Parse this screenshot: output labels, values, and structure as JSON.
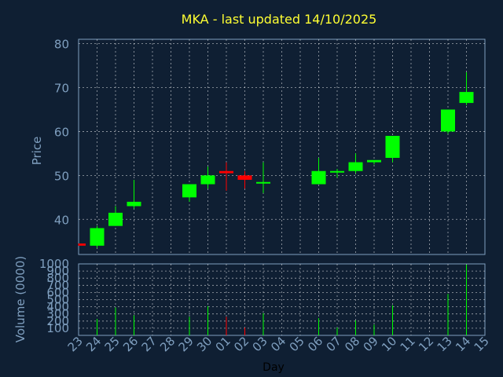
{
  "chart_data": {
    "type": "candlestick",
    "title": "MKA - last updated 14/10/2025",
    "xlabel": "Day",
    "price_panel": {
      "ylabel": "Price",
      "ylim": [
        32,
        81
      ],
      "yticks": [
        40,
        50,
        60,
        70,
        80
      ],
      "grid": true
    },
    "volume_panel": {
      "ylabel": "Volume (0000)",
      "ylim": [
        0,
        1000
      ],
      "yticks": [
        100,
        200,
        300,
        400,
        500,
        600,
        700,
        800,
        900,
        1000
      ],
      "grid": true
    },
    "x_tick_labels": [
      "23",
      "24",
      "25",
      "26",
      "27",
      "28",
      "29",
      "30",
      "01",
      "02",
      "03",
      "04",
      "05",
      "06",
      "07",
      "08",
      "09",
      "10",
      "11",
      "12",
      "13",
      "14",
      "15"
    ],
    "colors": {
      "up": "#00ff00",
      "down": "#ff0000",
      "grid": "#ffffff",
      "axis": "#7f9fbf",
      "title": "#ffff33"
    },
    "candles": [
      {
        "day": "23",
        "open": 34.5,
        "high": 34.5,
        "low": 34.0,
        "close": 34.0,
        "volume": 0
      },
      {
        "day": "24",
        "open": 34.0,
        "high": 38.5,
        "low": 33.5,
        "close": 38.0,
        "volume": 230
      },
      {
        "day": "25",
        "open": 38.5,
        "high": 43.0,
        "low": 38.5,
        "close": 41.5,
        "volume": 390
      },
      {
        "day": "26",
        "open": 43.0,
        "high": 49.0,
        "low": 42.5,
        "close": 44.0,
        "volume": 280
      },
      {
        "day": "29",
        "open": 45.0,
        "high": 48.0,
        "low": 44.0,
        "close": 48.0,
        "volume": 260
      },
      {
        "day": "30",
        "open": 48.0,
        "high": 52.0,
        "low": 47.0,
        "close": 50.0,
        "volume": 410
      },
      {
        "day": "01",
        "open": 51.0,
        "high": 53.0,
        "low": 46.5,
        "close": 50.5,
        "volume": 260
      },
      {
        "day": "02",
        "open": 50.0,
        "high": 51.0,
        "low": 47.0,
        "close": 49.0,
        "volume": 110
      },
      {
        "day": "03",
        "open": 48.5,
        "high": 53.0,
        "low": 46.0,
        "close": 48.5,
        "volume": 310
      },
      {
        "day": "06",
        "open": 48.0,
        "high": 54.0,
        "low": 48.0,
        "close": 51.0,
        "volume": 240
      },
      {
        "day": "07",
        "open": 51.0,
        "high": 51.5,
        "low": 49.5,
        "close": 51.0,
        "volume": 110
      },
      {
        "day": "08",
        "open": 51.0,
        "high": 55.0,
        "low": 50.5,
        "close": 53.0,
        "volume": 210
      },
      {
        "day": "09",
        "open": 53.0,
        "high": 53.5,
        "low": 52.5,
        "close": 53.5,
        "volume": 150
      },
      {
        "day": "10",
        "open": 54.0,
        "high": 59.0,
        "low": 53.0,
        "close": 59.0,
        "volume": 420
      },
      {
        "day": "13",
        "open": 60.0,
        "high": 65.0,
        "low": 59.5,
        "close": 65.0,
        "volume": 580
      },
      {
        "day": "14",
        "open": 66.5,
        "high": 73.5,
        "low": 66.0,
        "close": 69.0,
        "volume": 990
      }
    ]
  }
}
